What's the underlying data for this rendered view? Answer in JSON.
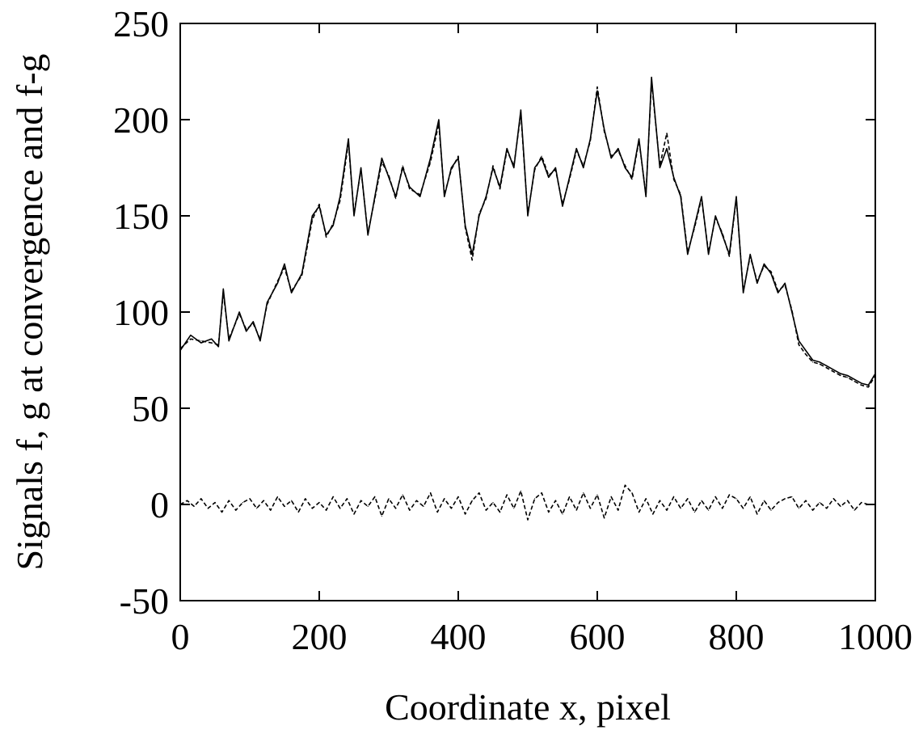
{
  "chart_data": {
    "type": "line",
    "title": "",
    "xlabel": "Coordinate x, pixel",
    "ylabel": "Signals f, g at convergence and f-g",
    "xlim": [
      0,
      1000
    ],
    "ylim": [
      -50,
      250
    ],
    "xticks": [
      0,
      200,
      400,
      600,
      800,
      1000
    ],
    "yticks": [
      -50,
      0,
      50,
      100,
      150,
      200,
      250
    ],
    "xtick_labels": [
      "0",
      "200",
      "400",
      "600",
      "800",
      "1000"
    ],
    "ytick_labels": [
      "-50",
      "0",
      "50",
      "100",
      "150",
      "200",
      "250"
    ],
    "grid": false,
    "legend": "none",
    "series": [
      {
        "style": "solid",
        "color": "#000000",
        "x": [
          0,
          15,
          30,
          45,
          55,
          62,
          70,
          85,
          95,
          105,
          115,
          125,
          140,
          150,
          160,
          175,
          190,
          200,
          210,
          220,
          230,
          242,
          250,
          260,
          270,
          280,
          290,
          300,
          310,
          320,
          330,
          345,
          360,
          372,
          380,
          390,
          400,
          410,
          420,
          430,
          440,
          450,
          460,
          470,
          480,
          490,
          500,
          510,
          520,
          530,
          540,
          550,
          560,
          570,
          580,
          590,
          600,
          610,
          620,
          630,
          640,
          650,
          660,
          670,
          678,
          690,
          700,
          710,
          720,
          730,
          740,
          750,
          760,
          770,
          780,
          790,
          800,
          810,
          820,
          830,
          840,
          850,
          860,
          870,
          880,
          890,
          900,
          910,
          920,
          930,
          940,
          950,
          960,
          970,
          980,
          990,
          1000
        ],
        "y": [
          80,
          88,
          84,
          86,
          82,
          112,
          85,
          100,
          90,
          95,
          85,
          105,
          115,
          125,
          110,
          120,
          150,
          155,
          140,
          145,
          160,
          190,
          150,
          175,
          140,
          160,
          180,
          170,
          160,
          175,
          165,
          160,
          180,
          200,
          160,
          175,
          180,
          145,
          130,
          150,
          160,
          175,
          165,
          185,
          175,
          205,
          150,
          175,
          180,
          170,
          175,
          155,
          170,
          185,
          175,
          190,
          215,
          195,
          180,
          185,
          175,
          170,
          190,
          160,
          222,
          175,
          185,
          170,
          160,
          130,
          145,
          160,
          130,
          150,
          140,
          130,
          160,
          110,
          130,
          115,
          125,
          120,
          110,
          115,
          100,
          85,
          80,
          75,
          74,
          72,
          70,
          68,
          67,
          65,
          63,
          62,
          68
        ]
      },
      {
        "style": "dashed",
        "color": "#000000",
        "x": [
          0,
          15,
          30,
          45,
          55,
          62,
          70,
          85,
          95,
          105,
          115,
          125,
          140,
          150,
          160,
          175,
          190,
          200,
          210,
          220,
          230,
          242,
          250,
          260,
          270,
          280,
          290,
          300,
          310,
          320,
          330,
          345,
          360,
          372,
          380,
          390,
          400,
          410,
          420,
          430,
          440,
          450,
          460,
          470,
          480,
          490,
          500,
          510,
          520,
          530,
          540,
          550,
          560,
          570,
          580,
          590,
          600,
          610,
          620,
          630,
          640,
          650,
          660,
          670,
          678,
          690,
          700,
          710,
          720,
          730,
          740,
          750,
          760,
          770,
          780,
          790,
          800,
          810,
          820,
          830,
          840,
          850,
          860,
          870,
          880,
          890,
          900,
          910,
          920,
          930,
          940,
          950,
          960,
          970,
          980,
          990,
          1000
        ],
        "y": [
          81,
          86,
          85,
          84,
          83,
          110,
          86,
          99,
          91,
          94,
          86,
          104,
          116,
          123,
          111,
          119,
          148,
          156,
          139,
          146,
          158,
          188,
          151,
          174,
          141,
          159,
          178,
          171,
          159,
          176,
          164,
          161,
          178,
          198,
          161,
          174,
          181,
          144,
          127,
          151,
          159,
          176,
          164,
          184,
          176,
          203,
          151,
          174,
          181,
          171,
          174,
          156,
          169,
          184,
          176,
          189,
          217,
          194,
          181,
          184,
          176,
          169,
          189,
          161,
          220,
          176,
          193,
          169,
          161,
          131,
          144,
          159,
          131,
          149,
          141,
          129,
          159,
          111,
          129,
          116,
          124,
          121,
          111,
          114,
          101,
          83,
          78,
          74,
          73,
          71,
          69,
          67,
          66,
          64,
          62,
          61,
          67
        ]
      },
      {
        "style": "dashed",
        "color": "#000000",
        "x": [
          0,
          10,
          20,
          30,
          40,
          50,
          60,
          70,
          80,
          90,
          100,
          110,
          120,
          130,
          140,
          150,
          160,
          170,
          180,
          190,
          200,
          210,
          220,
          230,
          240,
          250,
          260,
          270,
          280,
          290,
          300,
          310,
          320,
          330,
          340,
          350,
          360,
          370,
          380,
          390,
          400,
          410,
          420,
          430,
          440,
          450,
          460,
          470,
          480,
          490,
          500,
          510,
          520,
          530,
          540,
          550,
          560,
          570,
          580,
          590,
          600,
          610,
          620,
          630,
          640,
          650,
          660,
          670,
          680,
          690,
          700,
          710,
          720,
          730,
          740,
          750,
          760,
          770,
          780,
          790,
          800,
          810,
          820,
          830,
          840,
          850,
          860,
          870,
          880,
          890,
          900,
          910,
          920,
          930,
          940,
          950,
          960,
          970,
          980,
          990
        ],
        "y": [
          0,
          2,
          -1,
          3,
          -2,
          1,
          -4,
          2,
          -3,
          1,
          3,
          -2,
          2,
          -3,
          4,
          -1,
          2,
          -4,
          3,
          -2,
          1,
          -3,
          4,
          -2,
          3,
          -5,
          2,
          -1,
          4,
          -6,
          3,
          -2,
          5,
          -3,
          2,
          -1,
          6,
          -4,
          3,
          -2,
          4,
          -5,
          2,
          6,
          -3,
          1,
          -4,
          5,
          -2,
          7,
          -8,
          3,
          6,
          -4,
          2,
          -5,
          4,
          -3,
          6,
          -2,
          5,
          -7,
          4,
          -3,
          10,
          6,
          -4,
          3,
          -5,
          2,
          -3,
          4,
          -2,
          3,
          -4,
          2,
          -3,
          4,
          -2,
          5,
          3,
          -2,
          4,
          -5,
          2,
          -3,
          1,
          3,
          4,
          -2,
          2,
          -3,
          1,
          -2,
          3,
          -1,
          2,
          -3,
          1,
          0
        ]
      }
    ]
  }
}
